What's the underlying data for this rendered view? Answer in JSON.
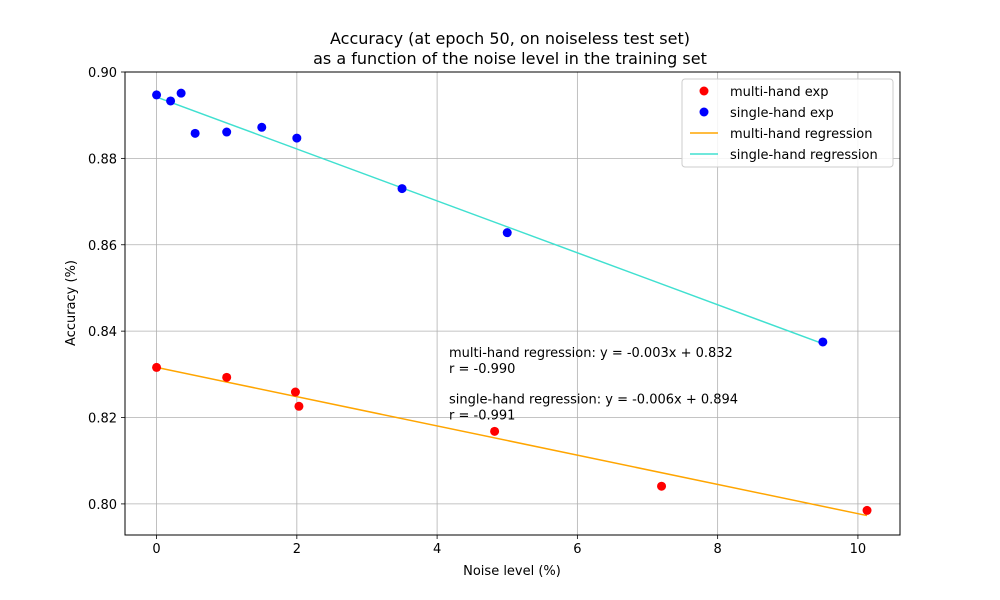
{
  "chart_data": {
    "type": "scatter",
    "title": [
      "Accuracy (at epoch 50, on noiseless test set)",
      "as a function of the noise level in the training set"
    ],
    "xlabel": "Noise level (%)",
    "ylabel": "Accuracy (%)",
    "xlim": [
      -0.45,
      10.6
    ],
    "ylim": [
      0.7928,
      0.9
    ],
    "xticks": [
      0,
      2,
      4,
      6,
      8,
      10
    ],
    "xtick_labels": [
      "0",
      "2",
      "4",
      "6",
      "8",
      "10"
    ],
    "yticks": [
      0.8,
      0.82,
      0.84,
      0.86,
      0.88,
      0.9
    ],
    "ytick_labels": [
      "0.80",
      "0.82",
      "0.84",
      "0.86",
      "0.88",
      "0.90"
    ],
    "grid": true,
    "legend_position": "top-right",
    "series": [
      {
        "name": "multi-hand exp",
        "kind": "scatter",
        "color": "#ff0000",
        "points": [
          {
            "x": 0.0,
            "y": 0.8316
          },
          {
            "x": 1.0,
            "y": 0.8293
          },
          {
            "x": 1.98,
            "y": 0.8259
          },
          {
            "x": 2.03,
            "y": 0.8226
          },
          {
            "x": 4.82,
            "y": 0.8168
          },
          {
            "x": 7.2,
            "y": 0.8041
          },
          {
            "x": 10.13,
            "y": 0.7985
          }
        ]
      },
      {
        "name": "single-hand exp",
        "kind": "scatter",
        "color": "#0000ff",
        "points": [
          {
            "x": 0.0,
            "y": 0.8947
          },
          {
            "x": 0.2,
            "y": 0.8933
          },
          {
            "x": 0.35,
            "y": 0.8951
          },
          {
            "x": 0.55,
            "y": 0.8858
          },
          {
            "x": 1.0,
            "y": 0.8861
          },
          {
            "x": 1.5,
            "y": 0.8872
          },
          {
            "x": 2.0,
            "y": 0.8847
          },
          {
            "x": 3.5,
            "y": 0.873
          },
          {
            "x": 5.0,
            "y": 0.8628
          },
          {
            "x": 9.5,
            "y": 0.8375
          }
        ]
      },
      {
        "name": "multi-hand regression",
        "kind": "line",
        "color": "#ffa500",
        "points": [
          {
            "x": 0.0,
            "y": 0.8316
          },
          {
            "x": 10.13,
            "y": 0.7973
          }
        ]
      },
      {
        "name": "single-hand regression",
        "kind": "line",
        "color": "#40e0d0",
        "points": [
          {
            "x": 0.0,
            "y": 0.8942
          },
          {
            "x": 9.5,
            "y": 0.8371
          }
        ]
      }
    ],
    "annotations": [
      {
        "lines": [
          "multi-hand regression: y = -0.003x + 0.832",
          "r = -0.990"
        ],
        "x": 4.17,
        "y": 0.834
      },
      {
        "lines": [
          "single-hand regression: y = -0.006x + 0.894",
          "r = -0.991"
        ],
        "x": 4.17,
        "y": 0.8232
      }
    ]
  }
}
